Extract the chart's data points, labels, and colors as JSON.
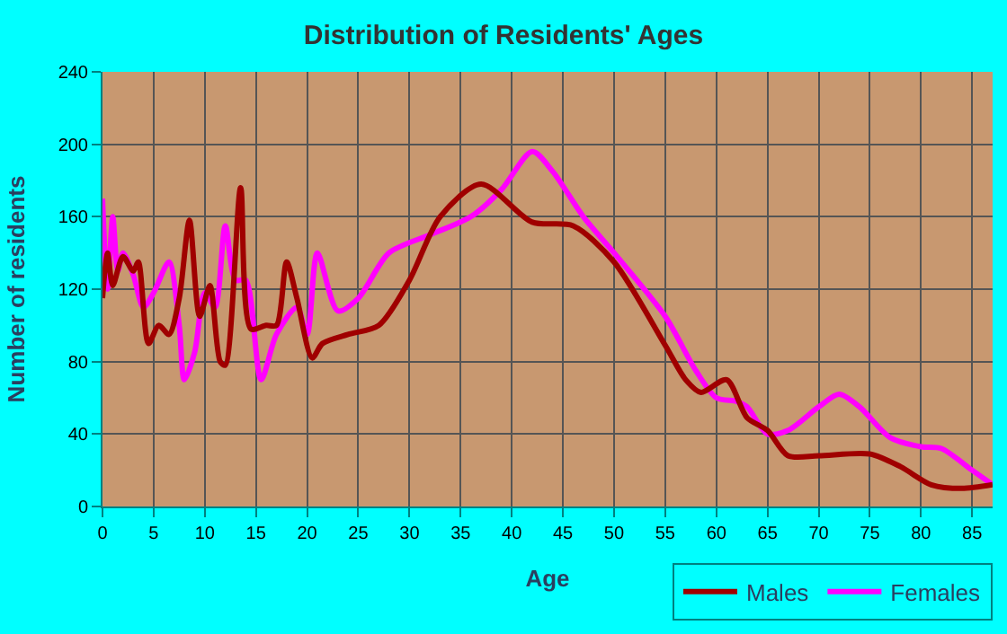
{
  "chart_data": {
    "type": "line",
    "title": "Distribution of Residents' Ages",
    "xlabel": "Age",
    "ylabel": "Number of residents",
    "xlim": [
      0,
      87
    ],
    "xticks": [
      0,
      5,
      10,
      15,
      20,
      25,
      30,
      35,
      40,
      45,
      50,
      55,
      60,
      65,
      70,
      75,
      80,
      85
    ],
    "ylim": [
      0,
      240
    ],
    "yticks": [
      0,
      40,
      80,
      120,
      160,
      200,
      240
    ],
    "grid": true,
    "legend": "bottom right",
    "marker": "none",
    "line_style": "solid",
    "series": [
      {
        "name": "Males",
        "color": "#a00000",
        "x": [
          0,
          0.5,
          1,
          2,
          3,
          3.5,
          4.5,
          5.5,
          6.5,
          7.5,
          8.5,
          9.5,
          10.5,
          11.5,
          12,
          13.5,
          14.5,
          16,
          17,
          18,
          19,
          20.5,
          21.5,
          24,
          27,
          30,
          33,
          37,
          42,
          46,
          50,
          55,
          57,
          58.5,
          61,
          63,
          65,
          67,
          70,
          75,
          78,
          81,
          84,
          87
        ],
        "values": [
          115,
          140,
          122,
          138,
          130,
          135,
          90,
          100,
          95,
          115,
          158,
          105,
          122,
          80,
          78,
          176,
          98,
          100,
          100,
          135,
          115,
          82,
          90,
          95,
          100,
          125,
          160,
          178,
          157,
          155,
          135,
          89,
          70,
          63,
          70,
          49,
          42,
          28,
          28,
          29,
          22,
          12,
          10,
          12
        ]
      },
      {
        "name": "Females",
        "color": "#ff00ff",
        "x": [
          0,
          0.5,
          1,
          1.5,
          2,
          3,
          4,
          5,
          6.5,
          7.5,
          8,
          9,
          10,
          11,
          12,
          13,
          14,
          15.5,
          17,
          19,
          20,
          21,
          23,
          25,
          28,
          32,
          36,
          39,
          42,
          44,
          47,
          50,
          55,
          58,
          60,
          62,
          63,
          65,
          67,
          70,
          72,
          74,
          77,
          80,
          82,
          85,
          87
        ],
        "values": [
          170,
          120,
          160,
          130,
          140,
          128,
          110,
          118,
          135,
          100,
          70,
          85,
          118,
          110,
          155,
          125,
          125,
          70,
          95,
          110,
          95,
          140,
          108,
          115,
          140,
          150,
          160,
          175,
          196,
          185,
          160,
          140,
          105,
          75,
          60,
          58,
          55,
          40,
          42,
          55,
          62,
          55,
          38,
          33,
          32,
          20,
          12
        ]
      }
    ]
  }
}
